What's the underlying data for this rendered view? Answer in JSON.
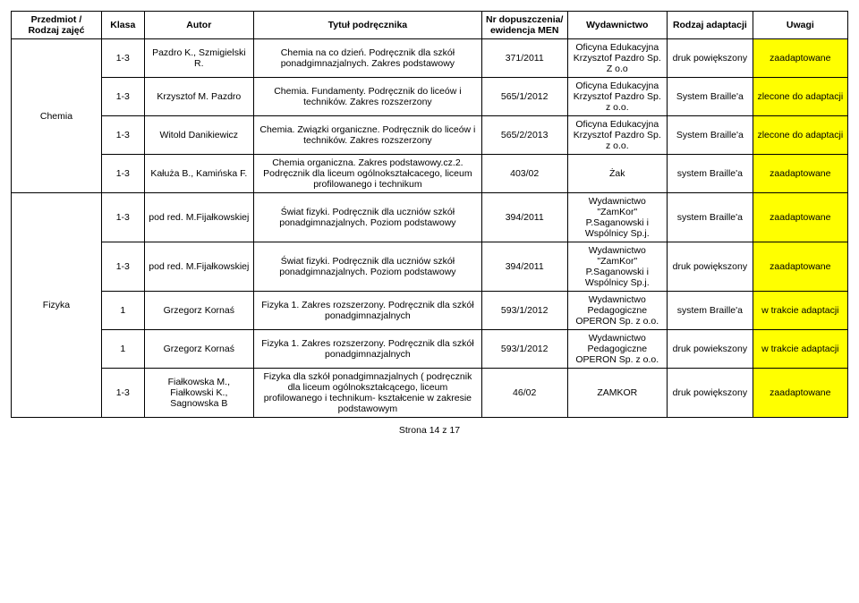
{
  "headers": {
    "subject": "Przedmiot / Rodzaj zajęć",
    "klasa": "Klasa",
    "autor": "Autor",
    "tytul": "Tytuł podręcznika",
    "nr": "Nr dopuszczenia/ ewidencja MEN",
    "wyd": "Wydawnictwo",
    "rodzaj": "Rodzaj adaptacji",
    "uwagi": "Uwagi"
  },
  "subjects": {
    "chemia": "Chemia",
    "fizyka": "Fizyka"
  },
  "rows": [
    {
      "klasa": "1-3",
      "autor": "Pazdro K., Szmigielski R.",
      "tytul": "Chemia na co dzień. Podręcznik dla szkół ponadgimnazjalnych. Zakres podstawowy",
      "nr": "371/2011",
      "wyd": "Oficyna Edukacyjna Krzysztof Pazdro Sp. Z o.o",
      "rodzaj": "druk powiększony",
      "uwagi": "zaadaptowane"
    },
    {
      "klasa": "1-3",
      "autor": "Krzysztof M. Pazdro",
      "tytul": "Chemia. Fundamenty. Podręcznik do liceów i techników. Zakres rozszerzony",
      "nr": "565/1/2012",
      "wyd": "Oficyna Edukacyjna Krzysztof Pazdro Sp. z o.o.",
      "rodzaj": "System Braille'a",
      "uwagi": "zlecone do adaptacji"
    },
    {
      "klasa": "1-3",
      "autor": "Witold Danikiewicz",
      "tytul": "Chemia. Związki organiczne. Podręcznik do liceów i techników. Zakres rozszerzony",
      "nr": "565/2/2013",
      "wyd": "Oficyna Edukacyjna Krzysztof Pazdro Sp. z o.o.",
      "rodzaj": "System Braille'a",
      "uwagi": "zlecone do adaptacji"
    },
    {
      "klasa": "1-3",
      "autor": "Kałuża B., Kamińska F.",
      "tytul": "Chemia organiczna. Zakres podstawowy.cz.2. Podręcznik dla liceum ogólnokształcacego, liceum profilowanego i technikum",
      "nr": "403/02",
      "wyd": "Żak",
      "rodzaj": "system Braille'a",
      "uwagi": "zaadaptowane"
    },
    {
      "klasa": "1-3",
      "autor": "pod red. M.Fijałkowskiej",
      "tytul": "Świat fizyki. Podręcznik dla uczniów szkół ponadgimnazjalnych. Poziom podstawowy",
      "nr": "394/2011",
      "wyd": "Wydawnictwo \"ZamKor\" P.Saganowski i Wspólnicy Sp.j.",
      "rodzaj": "system Braille'a",
      "uwagi": "zaadaptowane"
    },
    {
      "klasa": "1-3",
      "autor": "pod red. M.Fijałkowskiej",
      "tytul": "Świat fizyki. Podręcznik dla uczniów szkół ponadgimnazjalnych. Poziom podstawowy",
      "nr": "394/2011",
      "wyd": "Wydawnictwo \"ZamKor\" P.Saganowski i Wspólnicy Sp.j.",
      "rodzaj": "druk powiększony",
      "uwagi": "zaadaptowane"
    },
    {
      "klasa": "1",
      "autor": "Grzegorz Kornaś",
      "tytul": "Fizyka 1. Zakres rozszerzony. Podręcznik dla szkół ponadgimnazjalnych",
      "nr": "593/1/2012",
      "wyd": "Wydawnictwo Pedagogiczne OPERON Sp. z o.o.",
      "rodzaj": "system Braille'a",
      "uwagi": "w trakcie adaptacji"
    },
    {
      "klasa": "1",
      "autor": "Grzegorz Kornaś",
      "tytul": "Fizyka 1. Zakres rozszerzony. Podręcznik dla szkół ponadgimnazjalnych",
      "nr": "593/1/2012",
      "wyd": "Wydawnictwo Pedagogiczne OPERON Sp. z o.o.",
      "rodzaj": "druk powiekszony",
      "uwagi": "w trakcie adaptacji"
    },
    {
      "klasa": "1-3",
      "autor": "Fiałkowska M., Fiałkowski K., Sagnowska B",
      "tytul": "Fizyka dla szkół ponadgimnazjalnych ( podręcznik dla liceum ogólnokształcącego, liceum profilowanego i technikum- kształcenie w zakresie podstawowym",
      "nr": "46/02",
      "wyd": "ZAMKOR",
      "rodzaj": "druk powiększony",
      "uwagi": "zaadaptowane"
    }
  ],
  "footer": "Strona 14 z 17",
  "colors": {
    "highlight": "#ffff00",
    "border": "#000000",
    "bg": "#ffffff"
  }
}
